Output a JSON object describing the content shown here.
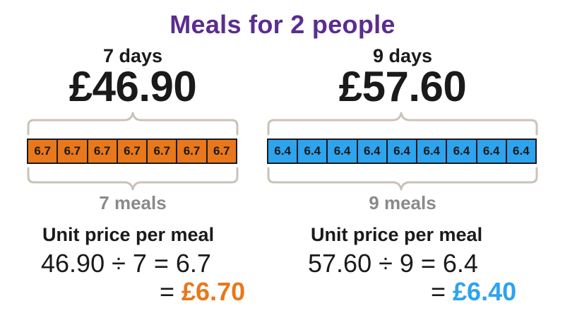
{
  "title": "Meals for 2 people",
  "colors": {
    "title": "#5b2d8e",
    "orange": "#e8781b",
    "blue": "#2ea3ee",
    "brace": "#c9c3b8",
    "gray_text": "#8a8a8a"
  },
  "left": {
    "days_label": "7 days",
    "price": "£46.90",
    "cell_value": "6.7",
    "cell_count": 7,
    "meals_label": "7 meals",
    "unit_title": "Unit price per meal",
    "calc": "46.90 ÷ 7 = 6.7",
    "equals": "= ",
    "result": "£6.70"
  },
  "right": {
    "days_label": "9 days",
    "price": "£57.60",
    "cell_value": "6.4",
    "cell_count": 9,
    "meals_label": "9 meals",
    "unit_title": "Unit price per meal",
    "calc": "57.60 ÷ 9 = 6.4",
    "equals": "= ",
    "result": "£6.40"
  }
}
